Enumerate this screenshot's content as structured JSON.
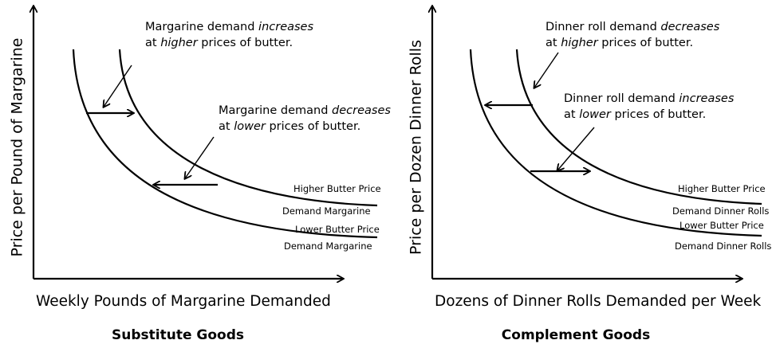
{
  "panels": [
    {
      "y_axis_title": "Price per Pound of Margarine",
      "x_axis_title": "Weekly Pounds of Margarine Demanded",
      "caption": "Substitute Goods",
      "annotations": [
        {
          "lines": [
            [
              {
                "text": "Margarine demand "
              },
              {
                "text": "increases",
                "italic": true
              }
            ],
            [
              {
                "text": "at "
              },
              {
                "text": "higher",
                "italic": true
              },
              {
                "text": " prices of butter."
              }
            ]
          ]
        },
        {
          "lines": [
            [
              {
                "text": "Margarine demand "
              },
              {
                "text": "decreases",
                "italic": true
              }
            ],
            [
              {
                "text": "at "
              },
              {
                "text": "lower",
                "italic": true
              },
              {
                "text": " prices of butter."
              }
            ]
          ]
        }
      ],
      "curve_labels": [
        "Higher Butter Price",
        "Demand Margarine",
        "Lower Butter Price",
        "Demand Margarine"
      ]
    },
    {
      "y_axis_title": "Price per Dozen Dinner Rolls",
      "x_axis_title": "Dozens of Dinner Rolls Demanded per Week",
      "caption": "Complement Goods",
      "annotations": [
        {
          "lines": [
            [
              {
                "text": "Dinner roll demand "
              },
              {
                "text": "decreases",
                "italic": true
              }
            ],
            [
              {
                "text": "at "
              },
              {
                "text": "higher",
                "italic": true
              },
              {
                "text": " prices of butter."
              }
            ]
          ]
        },
        {
          "lines": [
            [
              {
                "text": "Dinner roll demand "
              },
              {
                "text": "increases",
                "italic": true
              }
            ],
            [
              {
                "text": "at "
              },
              {
                "text": "lower",
                "italic": true
              },
              {
                "text": " prices of butter."
              }
            ]
          ]
        }
      ],
      "curve_labels": [
        "Higher Butter Price",
        "Demand Dinner Rolls",
        "Lower Butter Price",
        "Demand Dinner Rolls"
      ]
    }
  ]
}
